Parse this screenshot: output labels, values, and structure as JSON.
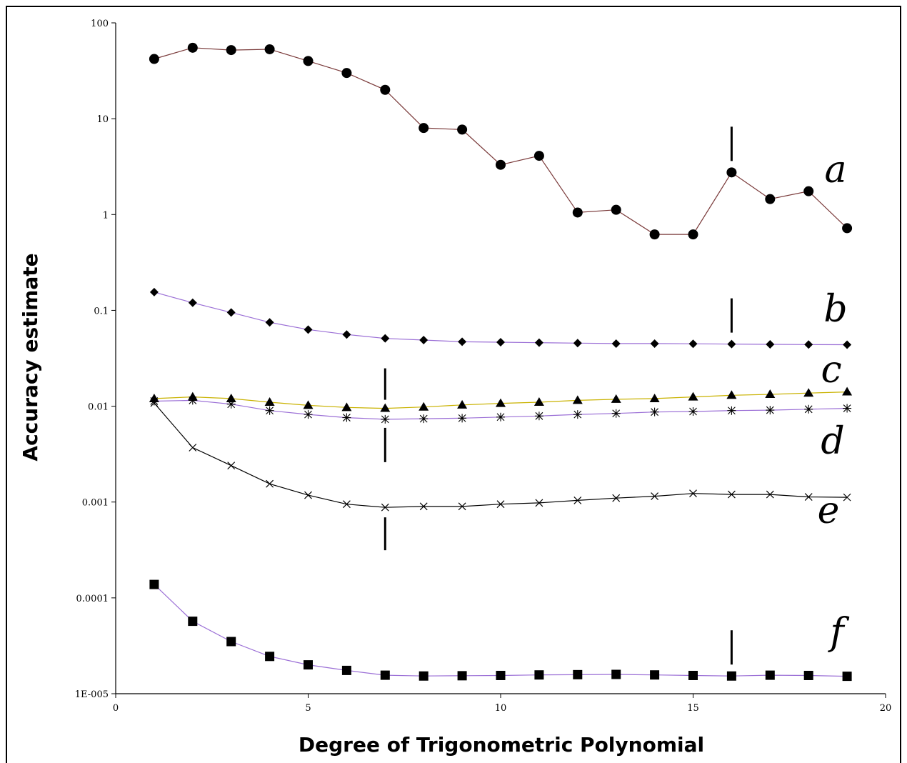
{
  "chart_data": {
    "type": "line",
    "xlabel": "Degree of Trigonometric Polynomial",
    "ylabel": "Accuracy estimate",
    "xlim": [
      0,
      20
    ],
    "ylim": [
      1e-05,
      100
    ],
    "yscale": "log",
    "xticks": [
      0,
      5,
      10,
      15,
      20
    ],
    "xtick_labels": [
      "0",
      "5",
      "10",
      "15",
      "20"
    ],
    "yticks": [
      1e-05,
      0.0001,
      0.001,
      0.01,
      0.1,
      1,
      10,
      100
    ],
    "ytick_labels": [
      "1E-005",
      "0.0001",
      "0.001",
      "0.01",
      "0.1",
      "1",
      "10",
      "100"
    ],
    "grid": false,
    "series": [
      {
        "name": "a",
        "marker": "circle",
        "color": "#7a3a3a",
        "x": [
          1,
          2,
          3,
          4,
          5,
          6,
          7,
          8,
          9,
          10,
          11,
          12,
          13,
          14,
          15,
          16,
          17,
          18,
          19
        ],
        "y": [
          42,
          55,
          52,
          53,
          40,
          30,
          20,
          8,
          7.7,
          3.3,
          4.1,
          1.05,
          1.12,
          0.62,
          0.62,
          2.75,
          1.45,
          1.75,
          0.72
        ]
      },
      {
        "name": "b",
        "marker": "diamond",
        "color": "#9b6fd6",
        "x": [
          1,
          2,
          3,
          4,
          5,
          6,
          7,
          8,
          9,
          10,
          11,
          12,
          13,
          14,
          15,
          16,
          17,
          18,
          19
        ],
        "y": [
          0.155,
          0.12,
          0.095,
          0.075,
          0.063,
          0.056,
          0.051,
          0.049,
          0.047,
          0.0465,
          0.046,
          0.0455,
          0.045,
          0.045,
          0.0448,
          0.0445,
          0.0442,
          0.044,
          0.0438
        ]
      },
      {
        "name": "c",
        "marker": "triangle",
        "color": "#c9b200",
        "x": [
          1,
          2,
          3,
          4,
          5,
          6,
          7,
          8,
          9,
          10,
          11,
          12,
          13,
          14,
          15,
          16,
          17,
          18,
          19
        ],
        "y": [
          0.012,
          0.0125,
          0.012,
          0.011,
          0.0102,
          0.0097,
          0.0095,
          0.0098,
          0.0103,
          0.0107,
          0.011,
          0.0115,
          0.0118,
          0.012,
          0.0125,
          0.013,
          0.0133,
          0.0137,
          0.0141
        ]
      },
      {
        "name": "d",
        "marker": "star",
        "color": "#9b6fd6",
        "x": [
          1,
          2,
          3,
          4,
          5,
          6,
          7,
          8,
          9,
          10,
          11,
          12,
          13,
          14,
          15,
          16,
          17,
          18,
          19
        ],
        "y": [
          0.0113,
          0.0115,
          0.0105,
          0.009,
          0.0082,
          0.0076,
          0.0073,
          0.0074,
          0.0075,
          0.0077,
          0.0079,
          0.0082,
          0.0084,
          0.0087,
          0.0088,
          0.009,
          0.0091,
          0.0093,
          0.0095
        ]
      },
      {
        "name": "e",
        "marker": "x",
        "color": "#000000",
        "x": [
          1,
          2,
          3,
          4,
          5,
          6,
          7,
          8,
          9,
          10,
          11,
          12,
          13,
          14,
          15,
          16,
          17,
          18,
          19
        ],
        "y": [
          0.0108,
          0.0037,
          0.0024,
          0.00155,
          0.00118,
          0.00095,
          0.00088,
          0.0009,
          0.0009,
          0.00095,
          0.00098,
          0.00104,
          0.0011,
          0.00115,
          0.00123,
          0.0012,
          0.0012,
          0.00113,
          0.00112
        ]
      },
      {
        "name": "f",
        "marker": "square",
        "color": "#9b6fd6",
        "x": [
          1,
          2,
          3,
          4,
          5,
          6,
          7,
          8,
          9,
          10,
          11,
          12,
          13,
          14,
          15,
          16,
          17,
          18,
          19
        ],
        "y": [
          0.000138,
          5.7e-05,
          3.5e-05,
          2.45e-05,
          2e-05,
          1.75e-05,
          1.56e-05,
          1.53e-05,
          1.54e-05,
          1.55e-05,
          1.57e-05,
          1.58e-05,
          1.59e-05,
          1.57e-05,
          1.55e-05,
          1.53e-05,
          1.56e-05,
          1.55e-05,
          1.52e-05
        ]
      }
    ],
    "markers_vertical": [
      {
        "series": "a",
        "x": 16
      },
      {
        "series": "b",
        "x": 16
      },
      {
        "series": "c",
        "x": 7
      },
      {
        "series": "d",
        "x": 7
      },
      {
        "series": "e",
        "x": 7
      },
      {
        "series": "f",
        "x": 16
      }
    ],
    "annotations": [
      "a",
      "b",
      "c",
      "d",
      "e",
      "f"
    ]
  }
}
